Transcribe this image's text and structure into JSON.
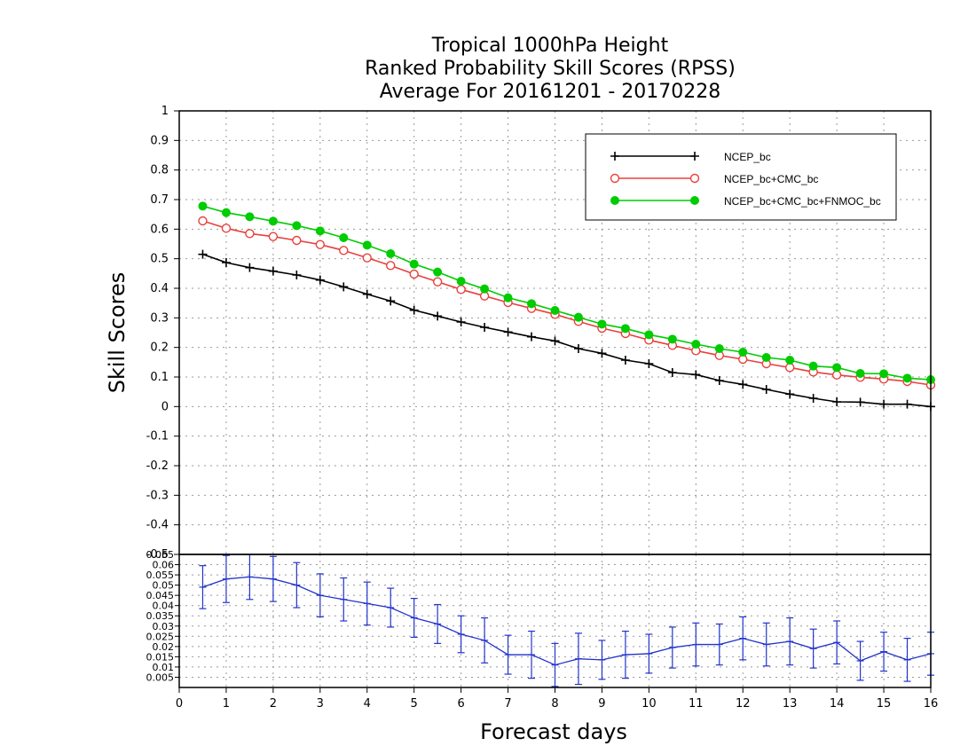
{
  "chart_data": {
    "type": "line",
    "title_lines": [
      "Tropical 1000hPa Height",
      "Ranked Probability Skill Scores (RPSS)",
      "Average For 20161201 - 20170228"
    ],
    "xlabel": "Forecast days",
    "ylabel": "Skill Scores",
    "x_ticks": [
      "0",
      "1",
      "2",
      "3",
      "4",
      "5",
      "6",
      "7",
      "8",
      "9",
      "10",
      "11",
      "12",
      "13",
      "14",
      "15",
      "16"
    ],
    "y_ticks": [
      "1",
      "0.9",
      "0.8",
      "0.7",
      "0.6",
      "0.5",
      "0.4",
      "0.3",
      "0.2",
      "0.1",
      "0",
      "-0.1",
      "-0.2",
      "-0.3",
      "-0.4",
      "-0.5"
    ],
    "ylim": [
      -0.5,
      1.0
    ],
    "xlim": [
      0,
      16
    ],
    "grid": true,
    "legend_position": "top-right",
    "x": [
      0.5,
      1,
      1.5,
      2,
      2.5,
      3,
      3.5,
      4,
      4.5,
      5,
      5.5,
      6,
      6.5,
      7,
      7.5,
      8,
      8.5,
      9,
      9.5,
      10,
      10.5,
      11,
      11.5,
      12,
      12.5,
      13,
      13.5,
      14,
      14.5,
      15,
      15.5,
      16
    ],
    "series": [
      {
        "name": "NCEP_bc",
        "color": "#000000",
        "marker": "plus",
        "values": [
          0.515,
          0.487,
          0.47,
          0.458,
          0.445,
          0.428,
          0.405,
          0.38,
          0.357,
          0.326,
          0.306,
          0.286,
          0.268,
          0.252,
          0.236,
          0.222,
          0.196,
          0.18,
          0.157,
          0.145,
          0.115,
          0.108,
          0.088,
          0.075,
          0.058,
          0.042,
          0.028,
          0.016,
          0.015,
          0.008,
          0.008,
          0.0
        ]
      },
      {
        "name": "NCEP_bc+CMC_bc",
        "color": "#e8413c",
        "marker": "open-circle",
        "values": [
          0.628,
          0.603,
          0.585,
          0.575,
          0.562,
          0.548,
          0.528,
          0.503,
          0.477,
          0.448,
          0.422,
          0.396,
          0.374,
          0.352,
          0.332,
          0.312,
          0.288,
          0.265,
          0.247,
          0.225,
          0.207,
          0.189,
          0.173,
          0.16,
          0.145,
          0.132,
          0.117,
          0.107,
          0.099,
          0.093,
          0.085,
          0.073
        ]
      },
      {
        "name": "NCEP_bc+CMC_bc+FNMOC_bc",
        "color": "#00cc00",
        "marker": "filled-circle",
        "values": [
          0.678,
          0.656,
          0.642,
          0.627,
          0.612,
          0.594,
          0.571,
          0.546,
          0.517,
          0.482,
          0.455,
          0.424,
          0.398,
          0.368,
          0.348,
          0.325,
          0.302,
          0.279,
          0.264,
          0.243,
          0.228,
          0.211,
          0.196,
          0.184,
          0.166,
          0.157,
          0.137,
          0.132,
          0.112,
          0.111,
          0.096,
          0.091
        ]
      }
    ],
    "lower_panel": {
      "y_ticks": [
        "0.065",
        "0.06",
        "0.055",
        "0.05",
        "0.045",
        "0.04",
        "0.035",
        "0.03",
        "0.025",
        "0.02",
        "0.015",
        "0.01",
        "0.005"
      ],
      "ylim": [
        0.0,
        0.065
      ],
      "color": "#2233cc",
      "values": [
        0.049,
        0.053,
        0.054,
        0.053,
        0.05,
        0.045,
        0.043,
        0.041,
        0.039,
        0.034,
        0.031,
        0.026,
        0.023,
        0.016,
        0.016,
        0.011,
        0.014,
        0.0135,
        0.016,
        0.0165,
        0.0195,
        0.021,
        0.021,
        0.024,
        0.021,
        0.0225,
        0.019,
        0.022,
        0.013,
        0.0175,
        0.0135,
        0.0165
      ],
      "error": [
        0.0105,
        0.0115,
        0.011,
        0.011,
        0.011,
        0.0105,
        0.0105,
        0.0105,
        0.0095,
        0.0095,
        0.0095,
        0.009,
        0.011,
        0.0095,
        0.0115,
        0.0105,
        0.0125,
        0.0095,
        0.0115,
        0.0095,
        0.01,
        0.0105,
        0.01,
        0.0105,
        0.0105,
        0.0115,
        0.0095,
        0.0105,
        0.0095,
        0.0095,
        0.0105,
        0.0105
      ]
    }
  }
}
